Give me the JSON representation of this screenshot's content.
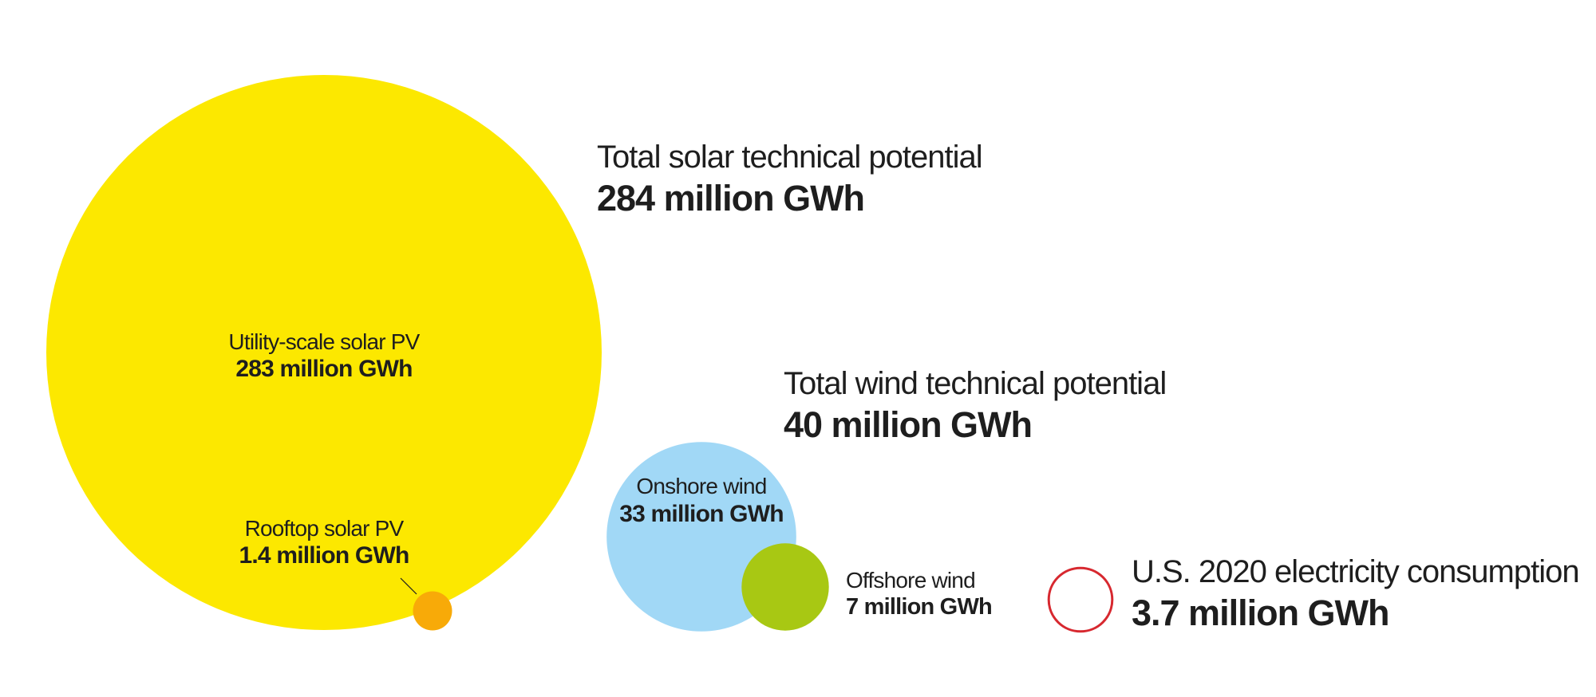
{
  "chart_data": {
    "type": "bubble",
    "items": [
      {
        "id": "total-solar",
        "category": "solar",
        "label": "Total solar technical potential",
        "value": 284,
        "value_text": "284 million GWh"
      },
      {
        "id": "utility-solar",
        "category": "solar",
        "label": "Utility-scale solar PV",
        "value": 283,
        "value_text": "283 million GWh",
        "color": "#FCE800"
      },
      {
        "id": "rooftop-solar",
        "category": "solar",
        "label": "Rooftop solar PV",
        "value": 1.4,
        "value_text": "1.4 million GWh",
        "color": "#F8AA08"
      },
      {
        "id": "total-wind",
        "category": "wind",
        "label": "Total wind technical potential",
        "value": 40,
        "value_text": "40 million GWh"
      },
      {
        "id": "onshore-wind",
        "category": "wind",
        "label": "Onshore wind",
        "value": 33,
        "value_text": "33 million GWh",
        "color": "#A1D8F6"
      },
      {
        "id": "offshore-wind",
        "category": "wind",
        "label": "Offshore wind",
        "value": 7,
        "value_text": "7 million GWh",
        "color": "#A8C813"
      },
      {
        "id": "us-consumption",
        "category": "reference",
        "label": "U.S. 2020 electricity consumption",
        "value": 3.7,
        "value_text": "3.7 million GWh",
        "color": "#D7282F",
        "outline_only": true
      }
    ],
    "units": "million GWh"
  }
}
